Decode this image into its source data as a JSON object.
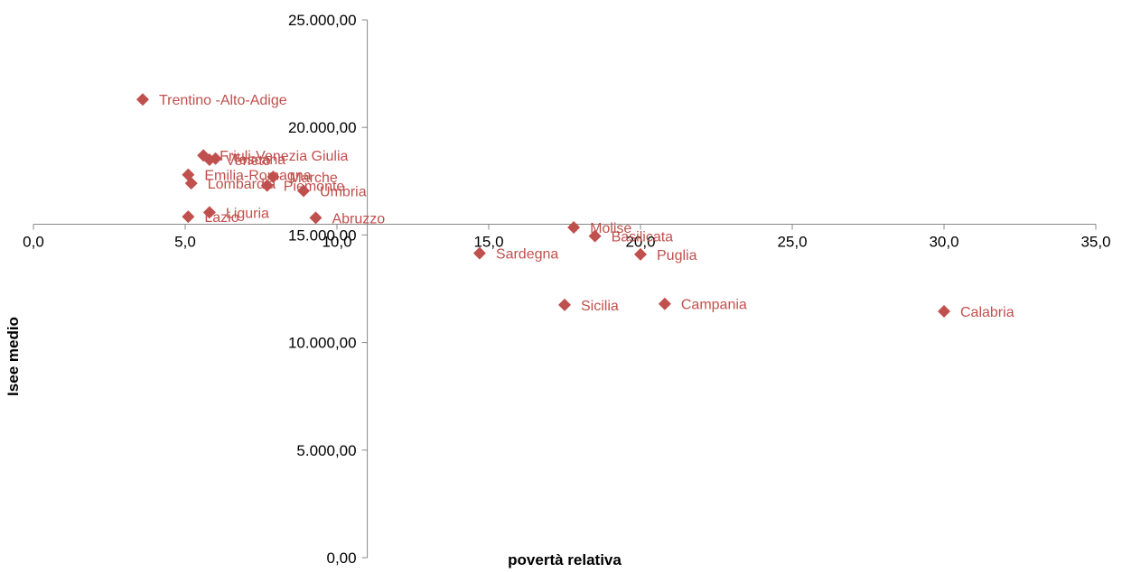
{
  "chart_data": {
    "type": "scatter",
    "xlabel": "povertà relativa",
    "ylabel": "Isee medio",
    "xlim": [
      0,
      35
    ],
    "ylim": [
      0,
      25000
    ],
    "x_ticks": [
      0,
      5,
      10,
      15,
      20,
      25,
      30,
      35
    ],
    "x_tick_labels": [
      "0,0",
      "5,0",
      "10,0",
      "15,0",
      "20,0",
      "25,0",
      "30,0",
      "35,0"
    ],
    "y_ticks": [
      0,
      5000,
      10000,
      15000,
      20000,
      25000
    ],
    "y_tick_labels": [
      "0,00",
      "5.000,00",
      "10.000,00",
      "15.000,00",
      "20.000,00",
      "25.000,00"
    ],
    "x_axis_crosses_y_at": 15500,
    "y_axis_crosses_x_at": 11,
    "grid": false,
    "marker_color": "#C0504D",
    "marker_shape": "diamond",
    "points": [
      {
        "label": "Trentino -Alto-Adige",
        "x": 3.6,
        "y": 21300
      },
      {
        "label": "Friuli-Venezia Giulia",
        "x": 5.6,
        "y": 18700
      },
      {
        "label": "Veneto",
        "x": 5.8,
        "y": 18500
      },
      {
        "label": "Toscana",
        "x": 6.0,
        "y": 18550
      },
      {
        "label": "Emilia-Romagna",
        "x": 5.1,
        "y": 17800
      },
      {
        "label": "Lombardia",
        "x": 5.2,
        "y": 17400
      },
      {
        "label": "Marche",
        "x": 7.9,
        "y": 17700
      },
      {
        "label": "Piemonte",
        "x": 7.7,
        "y": 17300
      },
      {
        "label": "Umbria",
        "x": 8.9,
        "y": 17050
      },
      {
        "label": "Liguria",
        "x": 5.8,
        "y": 16050
      },
      {
        "label": "Lazio",
        "x": 5.1,
        "y": 15850
      },
      {
        "label": "Abruzzo",
        "x": 9.3,
        "y": 15800
      },
      {
        "label": "Molise",
        "x": 17.8,
        "y": 15350
      },
      {
        "label": "Basilicata",
        "x": 18.5,
        "y": 14950
      },
      {
        "label": "Sardegna",
        "x": 14.7,
        "y": 14150
      },
      {
        "label": "Puglia",
        "x": 20.0,
        "y": 14100
      },
      {
        "label": "Sicilia",
        "x": 17.5,
        "y": 11750
      },
      {
        "label": "Campania",
        "x": 20.8,
        "y": 11800
      },
      {
        "label": "Calabria",
        "x": 30.0,
        "y": 11450
      }
    ]
  }
}
